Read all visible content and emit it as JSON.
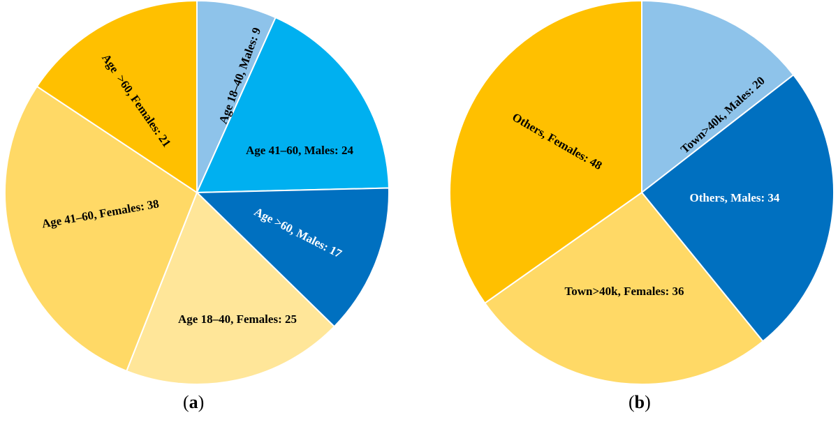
{
  "chart_data": [
    {
      "type": "pie",
      "panel_label": "a",
      "slices": [
        {
          "label": "Age 18–40, Males: 9",
          "value": 9,
          "color": "#8EC3EA",
          "text_color": "#000000"
        },
        {
          "label": "Age 41–60, Males: 24",
          "value": 24,
          "color": "#00B0F0",
          "text_color": "#000000"
        },
        {
          "label": "Age >60, Males: 17",
          "value": 17,
          "color": "#0070C0",
          "text_color": "#FFFFFF"
        },
        {
          "label": "Age 18–40, Females: 25",
          "value": 25,
          "color": "#FFE699",
          "text_color": "#000000"
        },
        {
          "label": "Age 41–60, Females: 38",
          "value": 38,
          "color": "#FFD966",
          "text_color": "#000000"
        },
        {
          "label": "Age  >60, Females: 21",
          "value": 21,
          "color": "#FFC000",
          "text_color": "#000000"
        }
      ]
    },
    {
      "type": "pie",
      "panel_label": "b",
      "slices": [
        {
          "label": "Town>40k, Males: 20",
          "value": 20,
          "color": "#8EC3EA",
          "text_color": "#000000"
        },
        {
          "label": "Others, Males: 34",
          "value": 34,
          "color": "#0070C0",
          "text_color": "#FFFFFF"
        },
        {
          "label": "Town>40k, Females: 36",
          "value": 36,
          "color": "#FFD966",
          "text_color": "#000000"
        },
        {
          "label": "Others, Females: 48",
          "value": 48,
          "color": "#FFC000",
          "text_color": "#000000"
        }
      ]
    }
  ]
}
